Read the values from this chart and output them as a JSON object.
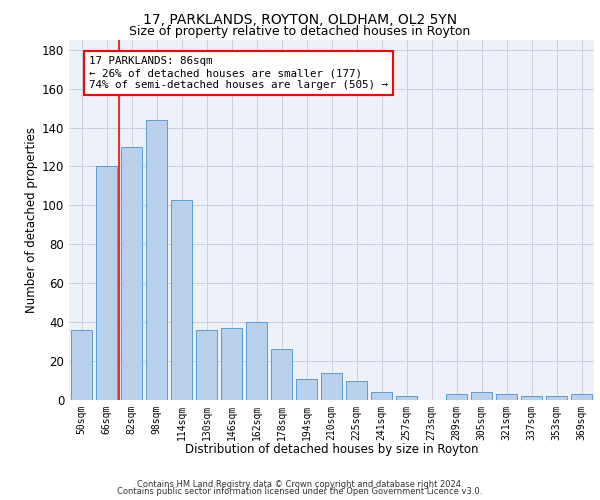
{
  "title1": "17, PARKLANDS, ROYTON, OLDHAM, OL2 5YN",
  "title2": "Size of property relative to detached houses in Royton",
  "xlabel": "Distribution of detached houses by size in Royton",
  "ylabel": "Number of detached properties",
  "categories": [
    "50sqm",
    "66sqm",
    "82sqm",
    "98sqm",
    "114sqm",
    "130sqm",
    "146sqm",
    "162sqm",
    "178sqm",
    "194sqm",
    "210sqm",
    "225sqm",
    "241sqm",
    "257sqm",
    "273sqm",
    "289sqm",
    "305sqm",
    "321sqm",
    "337sqm",
    "353sqm",
    "369sqm"
  ],
  "values": [
    36,
    120,
    130,
    144,
    103,
    36,
    37,
    40,
    26,
    11,
    14,
    10,
    4,
    2,
    0,
    3,
    4,
    3,
    2,
    2,
    3
  ],
  "bar_color": "#b8d0ea",
  "bar_edge_color": "#5b9bd5",
  "vline_index": 1.5,
  "annotation_line1": "17 PARKLANDS: 86sqm",
  "annotation_line2": "← 26% of detached houses are smaller (177)",
  "annotation_line3": "74% of semi-detached houses are larger (505) →",
  "ylim_max": 185,
  "yticks": [
    0,
    20,
    40,
    60,
    80,
    100,
    120,
    140,
    160,
    180
  ],
  "footer1": "Contains HM Land Registry data © Crown copyright and database right 2024.",
  "footer2": "Contains public sector information licensed under the Open Government Licence v3.0.",
  "bg_color": "#edf1fa",
  "grid_color": "#c8cfe0"
}
